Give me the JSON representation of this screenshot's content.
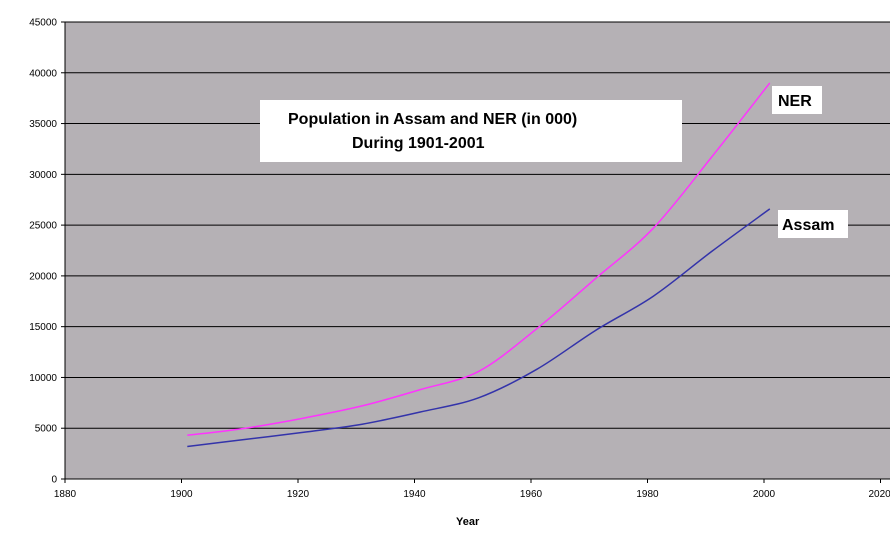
{
  "chart_data": {
    "type": "line",
    "title": "Population in Assam and NER (in 000)",
    "subtitle": "During 1901-2001",
    "xlabel": "Year",
    "ylabel": "",
    "xlim": [
      1880,
      2020
    ],
    "ylim": [
      0,
      45000
    ],
    "x_ticks": [
      1880,
      1900,
      1920,
      1940,
      1960,
      1980,
      2000,
      2020
    ],
    "y_ticks": [
      0,
      5000,
      10000,
      15000,
      20000,
      25000,
      30000,
      35000,
      40000,
      45000
    ],
    "grid": "horizontal",
    "background": "#b5b1b5",
    "series": [
      {
        "name": "NER",
        "color": "#ff33ff",
        "x": [
          1901,
          1911,
          1921,
          1931,
          1941,
          1951,
          1961,
          1971,
          1981,
          1991,
          2001
        ],
        "y": [
          4300,
          5000,
          6000,
          7200,
          8800,
          10600,
          14800,
          19700,
          24700,
          31700,
          39000
        ]
      },
      {
        "name": "Assam",
        "color": "#3333aa",
        "x": [
          1901,
          1911,
          1921,
          1931,
          1941,
          1951,
          1961,
          1971,
          1981,
          1991,
          2001
        ],
        "y": [
          3200,
          3900,
          4600,
          5400,
          6600,
          8000,
          10800,
          14600,
          18000,
          22400,
          26600
        ]
      }
    ]
  }
}
